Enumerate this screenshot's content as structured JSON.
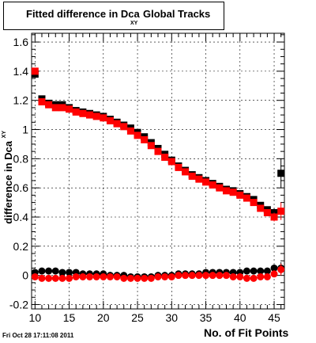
{
  "title": {
    "main": "Fitted difference in Dca",
    "sub": "XY",
    "rest": "Global Tracks"
  },
  "ylabel": "difference in Dca",
  "ylabel_sub": "XY",
  "xlabel": "No. of Fit Points",
  "datestamp": "Fri Oct 28 17:11:08 2011",
  "colors": {
    "black_series": "#000000",
    "red_series": "#ff0000",
    "frame": "#000000"
  },
  "chart_data": {
    "type": "scatter",
    "xlim": [
      9.5,
      46.5
    ],
    "ylim": [
      -0.23,
      1.66
    ],
    "xticks_major": [
      10,
      15,
      20,
      25,
      30,
      35,
      40,
      45
    ],
    "xtick_labels": [
      "10",
      "15",
      "20",
      "25",
      "30",
      "35",
      "40",
      "45"
    ],
    "yticks_major": [
      -0.2,
      0,
      0.2,
      0.4,
      0.6,
      0.8,
      1,
      1.2,
      1.4,
      1.6
    ],
    "ytick_labels": [
      "-0.2",
      "0",
      "0.2",
      "0.4",
      "0.6",
      "0.8",
      "1",
      "1.2",
      "1.4",
      "1.6"
    ],
    "grid": true,
    "legend": "none",
    "series": [
      {
        "color": "#000000",
        "marker": "square",
        "x": [
          10,
          11,
          12,
          13,
          14,
          15,
          16,
          17,
          18,
          19,
          20,
          21,
          22,
          23,
          24,
          25,
          26,
          27,
          28,
          29,
          30,
          31,
          32,
          33,
          34,
          35,
          36,
          37,
          38,
          39,
          40,
          41,
          42,
          43,
          44,
          45,
          46
        ],
        "y": [
          1.38,
          1.21,
          1.18,
          1.17,
          1.17,
          1.15,
          1.13,
          1.12,
          1.11,
          1.1,
          1.09,
          1.07,
          1.05,
          1.03,
          1.01,
          0.98,
          0.95,
          0.91,
          0.87,
          0.83,
          0.79,
          0.75,
          0.72,
          0.69,
          0.67,
          0.65,
          0.63,
          0.61,
          0.59,
          0.58,
          0.56,
          0.54,
          0.52,
          0.48,
          0.45,
          0.43,
          0.7
        ],
        "yerr": [
          0.02,
          0.01,
          0.01,
          0.01,
          0.01,
          0.01,
          0.01,
          0.01,
          0.01,
          0.01,
          0.01,
          0.01,
          0.01,
          0.01,
          0.01,
          0.01,
          0.01,
          0.01,
          0.01,
          0.01,
          0.01,
          0.01,
          0.01,
          0.01,
          0.01,
          0.01,
          0.01,
          0.01,
          0.01,
          0.01,
          0.01,
          0.01,
          0.01,
          0.01,
          0.02,
          0.03,
          0.1
        ]
      },
      {
        "color": "#000000",
        "marker": "circle",
        "x": [
          10,
          11,
          12,
          13,
          14,
          15,
          16,
          17,
          18,
          19,
          20,
          21,
          22,
          23,
          24,
          25,
          26,
          27,
          28,
          29,
          30,
          31,
          32,
          33,
          34,
          35,
          36,
          37,
          38,
          39,
          40,
          41,
          42,
          43,
          44,
          45,
          46
        ],
        "y": [
          0.02,
          0.03,
          0.03,
          0.03,
          0.02,
          0.02,
          0.02,
          0.01,
          0.01,
          0.01,
          0.01,
          0.0,
          0.0,
          0.0,
          -0.01,
          -0.01,
          -0.01,
          -0.01,
          0.0,
          0.0,
          0.0,
          0.01,
          0.01,
          0.01,
          0.01,
          0.02,
          0.02,
          0.02,
          0.02,
          0.02,
          0.02,
          0.03,
          0.03,
          0.03,
          0.03,
          0.05,
          0.05
        ],
        "yerr": [
          0.01,
          0.01,
          0.01,
          0.01,
          0.01,
          0.01,
          0.01,
          0.01,
          0.01,
          0.01,
          0.01,
          0.01,
          0.01,
          0.01,
          0.01,
          0.01,
          0.01,
          0.01,
          0.01,
          0.01,
          0.01,
          0.01,
          0.01,
          0.01,
          0.01,
          0.01,
          0.01,
          0.01,
          0.01,
          0.01,
          0.01,
          0.01,
          0.01,
          0.01,
          0.01,
          0.02,
          0.04
        ]
      },
      {
        "color": "#ff0000",
        "marker": "square",
        "x": [
          10,
          11,
          12,
          13,
          14,
          15,
          16,
          17,
          18,
          19,
          20,
          21,
          22,
          23,
          24,
          25,
          26,
          27,
          28,
          29,
          30,
          31,
          32,
          33,
          34,
          35,
          36,
          37,
          38,
          39,
          40,
          41,
          42,
          43,
          44,
          45,
          46
        ],
        "y": [
          1.4,
          1.19,
          1.17,
          1.15,
          1.15,
          1.14,
          1.12,
          1.11,
          1.1,
          1.09,
          1.08,
          1.06,
          1.04,
          1.02,
          0.99,
          0.96,
          0.93,
          0.89,
          0.85,
          0.81,
          0.78,
          0.74,
          0.71,
          0.68,
          0.66,
          0.64,
          0.62,
          0.6,
          0.58,
          0.57,
          0.55,
          0.53,
          0.5,
          0.46,
          0.43,
          0.4,
          0.44
        ],
        "yerr": [
          0.02,
          0.01,
          0.01,
          0.01,
          0.01,
          0.01,
          0.01,
          0.01,
          0.01,
          0.01,
          0.01,
          0.01,
          0.01,
          0.01,
          0.01,
          0.01,
          0.01,
          0.01,
          0.01,
          0.01,
          0.01,
          0.01,
          0.01,
          0.01,
          0.01,
          0.01,
          0.01,
          0.01,
          0.01,
          0.01,
          0.01,
          0.01,
          0.01,
          0.01,
          0.02,
          0.03,
          0.06
        ]
      },
      {
        "color": "#ff0000",
        "marker": "circle",
        "x": [
          10,
          11,
          12,
          13,
          14,
          15,
          16,
          17,
          18,
          19,
          20,
          21,
          22,
          23,
          24,
          25,
          26,
          27,
          28,
          29,
          30,
          31,
          32,
          33,
          34,
          35,
          36,
          37,
          38,
          39,
          40,
          41,
          42,
          43,
          44,
          45,
          46
        ],
        "y": [
          -0.01,
          -0.02,
          -0.02,
          -0.02,
          -0.02,
          -0.02,
          -0.01,
          -0.01,
          -0.01,
          -0.01,
          -0.01,
          -0.01,
          -0.01,
          -0.02,
          -0.02,
          -0.02,
          -0.02,
          -0.02,
          -0.01,
          -0.01,
          -0.01,
          0.0,
          0.0,
          0.0,
          0.0,
          0.0,
          0.0,
          0.0,
          0.0,
          -0.01,
          -0.01,
          -0.02,
          -0.02,
          -0.01,
          -0.01,
          0.01,
          0.04
        ],
        "yerr": [
          0.01,
          0.01,
          0.01,
          0.01,
          0.01,
          0.01,
          0.01,
          0.01,
          0.01,
          0.01,
          0.01,
          0.01,
          0.01,
          0.01,
          0.01,
          0.01,
          0.01,
          0.01,
          0.01,
          0.01,
          0.01,
          0.01,
          0.01,
          0.01,
          0.01,
          0.01,
          0.01,
          0.01,
          0.01,
          0.01,
          0.01,
          0.01,
          0.01,
          0.01,
          0.01,
          0.02,
          0.04
        ]
      }
    ]
  }
}
